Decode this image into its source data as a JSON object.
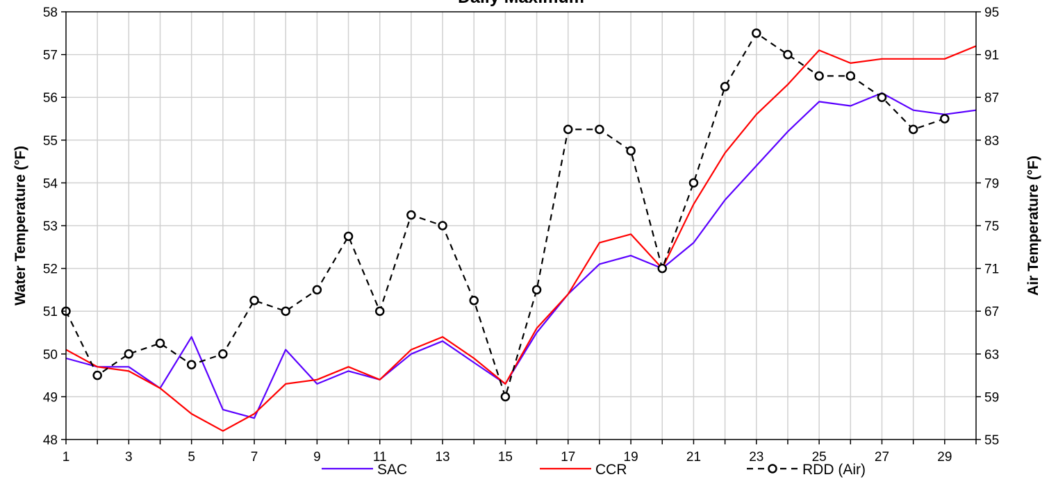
{
  "chart_data": {
    "type": "line",
    "title": "Daily Maximum",
    "x": [
      1,
      2,
      3,
      4,
      5,
      6,
      7,
      8,
      9,
      10,
      11,
      12,
      13,
      14,
      15,
      16,
      17,
      18,
      19,
      20,
      21,
      22,
      23,
      24,
      25,
      26,
      27,
      28,
      29,
      30
    ],
    "x_ticks": [
      1,
      3,
      5,
      7,
      9,
      11,
      13,
      15,
      17,
      19,
      21,
      23,
      25,
      27,
      29
    ],
    "xlim": [
      1,
      30
    ],
    "ylabel": "Water Temperature (°F)",
    "ylim": [
      48,
      58
    ],
    "y_ticks": [
      48,
      49,
      50,
      51,
      52,
      53,
      54,
      55,
      56,
      57,
      58
    ],
    "y2label": "Air Temperature (°F)",
    "y2lim": [
      55,
      95
    ],
    "y2_ticks": [
      55,
      59,
      63,
      67,
      71,
      75,
      79,
      83,
      87,
      91,
      95
    ],
    "grid": true,
    "legend_position": "bottom",
    "series": [
      {
        "name": "SAC",
        "axis": "left",
        "color": "#5a00ff",
        "style": "solid",
        "values": [
          49.9,
          49.7,
          49.7,
          49.2,
          50.4,
          48.7,
          48.5,
          50.1,
          49.3,
          49.6,
          49.4,
          50.0,
          50.3,
          49.8,
          49.3,
          50.5,
          51.4,
          52.1,
          52.3,
          52.0,
          52.6,
          53.6,
          54.4,
          55.2,
          55.9,
          55.8,
          56.1,
          55.7,
          55.6,
          55.7
        ]
      },
      {
        "name": "CCR",
        "axis": "left",
        "color": "#ff0000",
        "style": "solid",
        "values": [
          50.1,
          49.7,
          49.6,
          49.2,
          48.6,
          48.2,
          48.6,
          49.3,
          49.4,
          49.7,
          49.4,
          50.1,
          50.4,
          49.9,
          49.3,
          50.6,
          51.4,
          52.6,
          52.8,
          52.0,
          53.5,
          54.7,
          55.6,
          56.3,
          57.1,
          56.8,
          56.9,
          56.9,
          56.9,
          57.2
        ]
      },
      {
        "name": "RDD (Air)",
        "axis": "right",
        "color": "#000000",
        "style": "dashed",
        "marker": "circle",
        "values": [
          67,
          61,
          63,
          64,
          62,
          63,
          68,
          67,
          69,
          74,
          67,
          76,
          75,
          68,
          59,
          69,
          84,
          84,
          82,
          71,
          79,
          88,
          93,
          91,
          89,
          89,
          87,
          84,
          85,
          null
        ]
      }
    ]
  }
}
